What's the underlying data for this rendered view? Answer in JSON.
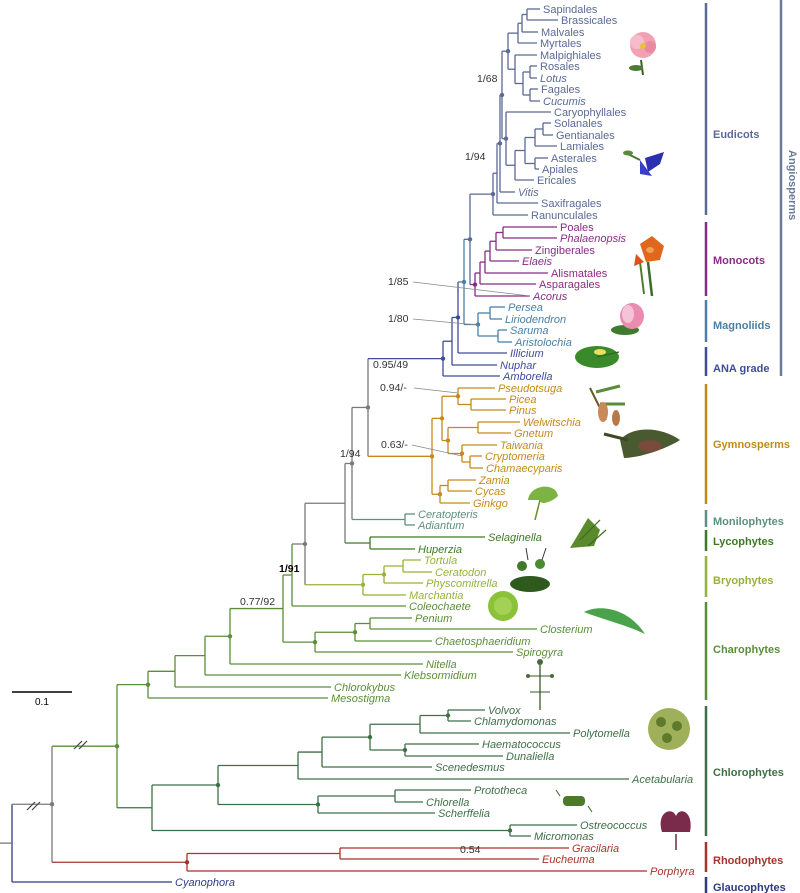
{
  "scale_bar": {
    "label": "0.1"
  },
  "colors": {
    "eudicots": "#5b6a96",
    "monocots": "#8a2b84",
    "magnoliids": "#4a7fa6",
    "ana": "#3e4c9a",
    "gymnosperms": "#c48a18",
    "monilophytes": "#5f8f80",
    "lycophytes": "#3d7a25",
    "bryophytes": "#96b23a",
    "charophytes": "#5a8f38",
    "chlorophytes": "#3f6f47",
    "rhodophytes": "#a8332a",
    "glaucophytes": "#2e3b82",
    "backbone": "#7a7a7a"
  },
  "taxa": [
    {
      "name": "Sapindales",
      "italic": false,
      "clade": "eudicots"
    },
    {
      "name": "Brassicales",
      "italic": false,
      "clade": "eudicots"
    },
    {
      "name": "Malvales",
      "italic": false,
      "clade": "eudicots"
    },
    {
      "name": "Myrtales",
      "italic": false,
      "clade": "eudicots"
    },
    {
      "name": "Malpighiales",
      "italic": false,
      "clade": "eudicots"
    },
    {
      "name": "Rosales",
      "italic": false,
      "clade": "eudicots"
    },
    {
      "name": "Lotus",
      "italic": true,
      "clade": "eudicots"
    },
    {
      "name": "Fagales",
      "italic": false,
      "clade": "eudicots"
    },
    {
      "name": "Cucumis",
      "italic": true,
      "clade": "eudicots"
    },
    {
      "name": "Caryophyllales",
      "italic": false,
      "clade": "eudicots"
    },
    {
      "name": "Solanales",
      "italic": false,
      "clade": "eudicots"
    },
    {
      "name": "Gentianales",
      "italic": false,
      "clade": "eudicots"
    },
    {
      "name": "Lamiales",
      "italic": false,
      "clade": "eudicots"
    },
    {
      "name": "Asterales",
      "italic": false,
      "clade": "eudicots"
    },
    {
      "name": "Apiales",
      "italic": false,
      "clade": "eudicots"
    },
    {
      "name": "Ericales",
      "italic": false,
      "clade": "eudicots"
    },
    {
      "name": "Vitis",
      "italic": true,
      "clade": "eudicots"
    },
    {
      "name": "Saxifragales",
      "italic": false,
      "clade": "eudicots"
    },
    {
      "name": "Ranunculales",
      "italic": false,
      "clade": "eudicots"
    },
    {
      "name": "Poales",
      "italic": false,
      "clade": "monocots"
    },
    {
      "name": "Phalaenopsis",
      "italic": true,
      "clade": "monocots"
    },
    {
      "name": "Zingiberales",
      "italic": false,
      "clade": "monocots"
    },
    {
      "name": "Elaeis",
      "italic": true,
      "clade": "monocots"
    },
    {
      "name": "Alismatales",
      "italic": false,
      "clade": "monocots"
    },
    {
      "name": "Asparagales",
      "italic": false,
      "clade": "monocots"
    },
    {
      "name": "Acorus",
      "italic": true,
      "clade": "monocots"
    },
    {
      "name": "Persea",
      "italic": true,
      "clade": "magnoliids"
    },
    {
      "name": "Liriodendron",
      "italic": true,
      "clade": "magnoliids"
    },
    {
      "name": "Saruma",
      "italic": true,
      "clade": "magnoliids"
    },
    {
      "name": "Aristolochia",
      "italic": true,
      "clade": "magnoliids"
    },
    {
      "name": "Illicium",
      "italic": true,
      "clade": "ana"
    },
    {
      "name": "Nuphar",
      "italic": true,
      "clade": "ana"
    },
    {
      "name": "Amborella",
      "italic": true,
      "clade": "ana"
    },
    {
      "name": "Pseudotsuga",
      "italic": true,
      "clade": "gymnosperms"
    },
    {
      "name": "Picea",
      "italic": true,
      "clade": "gymnosperms"
    },
    {
      "name": "Pinus",
      "italic": true,
      "clade": "gymnosperms"
    },
    {
      "name": "Welwitschia",
      "italic": true,
      "clade": "gymnosperms"
    },
    {
      "name": "Gnetum",
      "italic": true,
      "clade": "gymnosperms"
    },
    {
      "name": "Taiwania",
      "italic": true,
      "clade": "gymnosperms"
    },
    {
      "name": "Cryptomeria",
      "italic": true,
      "clade": "gymnosperms"
    },
    {
      "name": "Chamaecyparis",
      "italic": true,
      "clade": "gymnosperms"
    },
    {
      "name": "Zamia",
      "italic": true,
      "clade": "gymnosperms"
    },
    {
      "name": "Cycas",
      "italic": true,
      "clade": "gymnosperms"
    },
    {
      "name": "Ginkgo",
      "italic": true,
      "clade": "gymnosperms"
    },
    {
      "name": "Ceratopteris",
      "italic": true,
      "clade": "monilophytes"
    },
    {
      "name": "Adiantum",
      "italic": true,
      "clade": "monilophytes"
    },
    {
      "name": "Selaginella",
      "italic": true,
      "clade": "lycophytes"
    },
    {
      "name": "Huperzia",
      "italic": true,
      "clade": "lycophytes"
    },
    {
      "name": "Tortula",
      "italic": true,
      "clade": "bryophytes"
    },
    {
      "name": "Ceratodon",
      "italic": true,
      "clade": "bryophytes"
    },
    {
      "name": "Physcomitrella",
      "italic": true,
      "clade": "bryophytes"
    },
    {
      "name": "Marchantia",
      "italic": true,
      "clade": "bryophytes"
    },
    {
      "name": "Coleochaete",
      "italic": true,
      "clade": "charophytes"
    },
    {
      "name": "Penium",
      "italic": true,
      "clade": "charophytes"
    },
    {
      "name": "Closterium",
      "italic": true,
      "clade": "charophytes"
    },
    {
      "name": "Chaetosphaeridium",
      "italic": true,
      "clade": "charophytes"
    },
    {
      "name": "Spirogyra",
      "italic": true,
      "clade": "charophytes"
    },
    {
      "name": "Nitella",
      "italic": true,
      "clade": "charophytes"
    },
    {
      "name": "Klebsormidium",
      "italic": true,
      "clade": "charophytes"
    },
    {
      "name": "Chlorokybus",
      "italic": true,
      "clade": "charophytes"
    },
    {
      "name": "Mesostigma",
      "italic": true,
      "clade": "charophytes"
    },
    {
      "name": "Volvox",
      "italic": true,
      "clade": "chlorophytes"
    },
    {
      "name": "Chlamydomonas",
      "italic": true,
      "clade": "chlorophytes"
    },
    {
      "name": "Polytomella",
      "italic": true,
      "clade": "chlorophytes"
    },
    {
      "name": "Haematococcus",
      "italic": true,
      "clade": "chlorophytes"
    },
    {
      "name": "Dunaliella",
      "italic": true,
      "clade": "chlorophytes"
    },
    {
      "name": "Scenedesmus",
      "italic": true,
      "clade": "chlorophytes"
    },
    {
      "name": "Acetabularia",
      "italic": true,
      "clade": "chlorophytes"
    },
    {
      "name": "Prototheca",
      "italic": true,
      "clade": "chlorophytes"
    },
    {
      "name": "Chlorella",
      "italic": true,
      "clade": "chlorophytes"
    },
    {
      "name": "Scherffelia",
      "italic": true,
      "clade": "chlorophytes"
    },
    {
      "name": "Ostreococcus",
      "italic": true,
      "clade": "chlorophytes"
    },
    {
      "name": "Micromonas",
      "italic": true,
      "clade": "chlorophytes"
    },
    {
      "name": "Gracilaria",
      "italic": true,
      "clade": "rhodophytes"
    },
    {
      "name": "Eucheuma",
      "italic": true,
      "clade": "rhodophytes"
    },
    {
      "name": "Porphyra",
      "italic": true,
      "clade": "rhodophytes"
    },
    {
      "name": "Cyanophora",
      "italic": true,
      "clade": "glaucophytes"
    }
  ],
  "clades": [
    {
      "key": "eudicots",
      "label": "Eudicots"
    },
    {
      "key": "monocots",
      "label": "Monocots"
    },
    {
      "key": "magnoliids",
      "label": "Magnoliids"
    },
    {
      "key": "ana",
      "label": "ANA grade"
    },
    {
      "key": "gymnosperms",
      "label": "Gymnosperms"
    },
    {
      "key": "monilophytes",
      "label": "Monilophytes"
    },
    {
      "key": "lycophytes",
      "label": "Lycophytes"
    },
    {
      "key": "bryophytes",
      "label": "Bryophytes"
    },
    {
      "key": "charophytes",
      "label": "Charophytes"
    },
    {
      "key": "chlorophytes",
      "label": "Chlorophytes"
    },
    {
      "key": "rhodophytes",
      "label": "Rhodophytes"
    },
    {
      "key": "glaucophytes",
      "label": "Glaucophytes"
    }
  ],
  "outer_group": {
    "label": "Angiosperms"
  },
  "supports": [
    {
      "key": "s_rosids",
      "text": "1/68",
      "bold": false
    },
    {
      "key": "s_asterids",
      "text": "1/94",
      "bold": false
    },
    {
      "key": "s_acorus",
      "text": "1/85",
      "bold": false
    },
    {
      "key": "s_magnoliids",
      "text": "1/80",
      "bold": false
    },
    {
      "key": "s_angio",
      "text": "0.95/49",
      "bold": false
    },
    {
      "key": "s_pines",
      "text": "0.94/-",
      "bold": false
    },
    {
      "key": "s_cupress",
      "text": "0.63/-",
      "bold": false
    },
    {
      "key": "s_seed",
      "text": "1/94",
      "bold": false
    },
    {
      "key": "s_land",
      "text": "1/91",
      "bold": true
    },
    {
      "key": "s_coleo",
      "text": "0.77/92",
      "bold": false
    },
    {
      "key": "s_rhodo",
      "text": "0.54",
      "bold": false
    }
  ]
}
